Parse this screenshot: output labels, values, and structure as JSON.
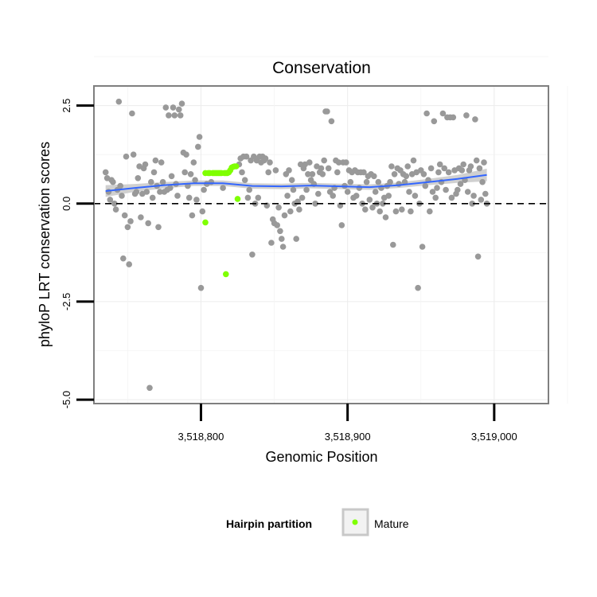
{
  "chart_data": {
    "type": "scatter",
    "title": "Conservation",
    "xlabel": "Genomic Position",
    "ylabel": "phyloP LRT conservation scores",
    "xlim": [
      3518727,
      3519037
    ],
    "ylim": [
      -5.1,
      3.0
    ],
    "x_ticks": [
      3518800,
      3518900,
      3519000
    ],
    "x_tick_labels": [
      "3,518,800",
      "3,518,900",
      "3,519,000"
    ],
    "y_ticks": [
      2.5,
      0.0,
      -2.5,
      -5.0
    ],
    "y_tick_labels": [
      "2.5",
      "0.0",
      "-2.5",
      "-5.0"
    ],
    "reference_line": {
      "y": 0,
      "style": "dashed"
    },
    "grid": true,
    "legend": {
      "title": "Hairpin partition",
      "position": "bottom",
      "entries": [
        {
          "label": "Mature",
          "color": "#7fff00"
        }
      ]
    },
    "colors": {
      "other": "#999999",
      "mature": "#7fff00",
      "smooth": "#3366ff",
      "band": "#c8c8c8"
    },
    "series": [
      {
        "name": "Mature",
        "points": [
          [
            3518803,
            0.78
          ],
          [
            3518805,
            0.78
          ],
          [
            3518806,
            0.78
          ],
          [
            3518808,
            0.78
          ],
          [
            3518809,
            0.78
          ],
          [
            3518810,
            0.78
          ],
          [
            3518811,
            0.78
          ],
          [
            3518812,
            0.78
          ],
          [
            3518813,
            0.78
          ],
          [
            3518814,
            0.78
          ],
          [
            3518816,
            0.78
          ],
          [
            3518817,
            0.78
          ],
          [
            3518818,
            0.78
          ],
          [
            3518819,
            0.8
          ],
          [
            3518820,
            0.85
          ],
          [
            3518821,
            0.92
          ],
          [
            3518822,
            0.94
          ],
          [
            3518823,
            0.95
          ],
          [
            3518824,
            0.95
          ],
          [
            3518825,
            0.12
          ],
          [
            3518803,
            -0.48
          ],
          [
            3518817,
            -1.8
          ]
        ]
      },
      {
        "points": [
          [
            3518735,
            0.8
          ],
          [
            3518736,
            0.65
          ],
          [
            3518737,
            0.3
          ],
          [
            3518738,
            0.1
          ],
          [
            3518739,
            0.6
          ],
          [
            3518740,
            0.55
          ],
          [
            3518741,
            0.0
          ],
          [
            3518742,
            -0.15
          ],
          [
            3518743,
            0.35
          ],
          [
            3518744,
            2.6
          ],
          [
            3518745,
            0.45
          ],
          [
            3518746,
            0.2
          ],
          [
            3518747,
            -1.4
          ],
          [
            3518748,
            -0.3
          ],
          [
            3518749,
            1.2
          ],
          [
            3518750,
            -0.6
          ],
          [
            3518751,
            -1.55
          ],
          [
            3518752,
            -0.45
          ],
          [
            3518753,
            2.3
          ],
          [
            3518754,
            1.25
          ],
          [
            3518755,
            0.25
          ],
          [
            3518756,
            0.3
          ],
          [
            3518757,
            0.65
          ],
          [
            3518758,
            0.95
          ],
          [
            3518759,
            -0.35
          ],
          [
            3518760,
            0.25
          ],
          [
            3518761,
            0.9
          ],
          [
            3518762,
            1.0
          ],
          [
            3518763,
            0.3
          ],
          [
            3518764,
            -0.5
          ],
          [
            3518765,
            -4.7
          ],
          [
            3518766,
            0.55
          ],
          [
            3518767,
            0.15
          ],
          [
            3518768,
            0.8
          ],
          [
            3518769,
            1.1
          ],
          [
            3518770,
            0.45
          ],
          [
            3518771,
            -0.6
          ],
          [
            3518772,
            0.3
          ],
          [
            3518773,
            1.05
          ],
          [
            3518774,
            0.55
          ],
          [
            3518775,
            0.3
          ],
          [
            3518776,
            2.45
          ],
          [
            3518777,
            0.35
          ],
          [
            3518778,
            2.25
          ],
          [
            3518779,
            0.4
          ],
          [
            3518780,
            0.7
          ],
          [
            3518781,
            2.45
          ],
          [
            3518782,
            2.25
          ],
          [
            3518783,
            0.5
          ],
          [
            3518784,
            0.2
          ],
          [
            3518785,
            2.4
          ],
          [
            3518786,
            2.25
          ],
          [
            3518787,
            2.55
          ],
          [
            3518788,
            1.3
          ],
          [
            3518789,
            0.8
          ],
          [
            3518790,
            1.25
          ],
          [
            3518791,
            0.45
          ],
          [
            3518792,
            0.15
          ],
          [
            3518793,
            0.75
          ],
          [
            3518794,
            -0.3
          ],
          [
            3518795,
            1.05
          ],
          [
            3518796,
            0.6
          ],
          [
            3518797,
            0.1
          ],
          [
            3518798,
            1.45
          ],
          [
            3518799,
            1.7
          ],
          [
            3518800,
            -2.15
          ],
          [
            3518801,
            -0.2
          ],
          [
            3518802,
            0.35
          ],
          [
            3518804,
            0.5
          ],
          [
            3518807,
            0.55
          ],
          [
            3518815,
            0.4
          ],
          [
            3518826,
            1.0
          ],
          [
            3518827,
            1.15
          ],
          [
            3518828,
            0.8
          ],
          [
            3518829,
            1.2
          ],
          [
            3518830,
            0.6
          ],
          [
            3518831,
            1.2
          ],
          [
            3518832,
            0.15
          ],
          [
            3518833,
            0.35
          ],
          [
            3518834,
            1.1
          ],
          [
            3518835,
            -1.3
          ],
          [
            3518836,
            1.2
          ],
          [
            3518837,
            0.0
          ],
          [
            3518838,
            1.1
          ],
          [
            3518839,
            0.15
          ],
          [
            3518840,
            1.2
          ],
          [
            3518841,
            1.05
          ],
          [
            3518842,
            1.2
          ],
          [
            3518843,
            1.1
          ],
          [
            3518844,
            1.15
          ],
          [
            3518845,
            -0.05
          ],
          [
            3518846,
            0.8
          ],
          [
            3518847,
            1.05
          ],
          [
            3518848,
            -1.0
          ],
          [
            3518849,
            -0.4
          ],
          [
            3518850,
            -0.5
          ],
          [
            3518851,
            0.85
          ],
          [
            3518852,
            -0.55
          ],
          [
            3518853,
            -0.1
          ],
          [
            3518854,
            -0.7
          ],
          [
            3518855,
            -0.9
          ],
          [
            3518856,
            -1.1
          ],
          [
            3518857,
            -0.3
          ],
          [
            3518858,
            0.75
          ],
          [
            3518859,
            0.2
          ],
          [
            3518860,
            0.85
          ],
          [
            3518861,
            -0.2
          ],
          [
            3518862,
            0.6
          ],
          [
            3518863,
            0.35
          ],
          [
            3518864,
            0.0
          ],
          [
            3518865,
            -0.9
          ],
          [
            3518866,
            0.05
          ],
          [
            3518867,
            -0.15
          ],
          [
            3518868,
            1.0
          ],
          [
            3518869,
            0.15
          ],
          [
            3518870,
            0.9
          ],
          [
            3518871,
            1.0
          ],
          [
            3518872,
            0.35
          ],
          [
            3518873,
            0.75
          ],
          [
            3518874,
            1.05
          ],
          [
            3518875,
            0.6
          ],
          [
            3518876,
            0.75
          ],
          [
            3518877,
            0.5
          ],
          [
            3518878,
            0.0
          ],
          [
            3518879,
            0.95
          ],
          [
            3518880,
            0.25
          ],
          [
            3518881,
            0.8
          ],
          [
            3518882,
            0.9
          ],
          [
            3518883,
            0.75
          ],
          [
            3518884,
            1.1
          ],
          [
            3518885,
            2.35
          ],
          [
            3518886,
            2.35
          ],
          [
            3518887,
            0.9
          ],
          [
            3518888,
            0.3
          ],
          [
            3518889,
            2.1
          ],
          [
            3518890,
            0.2
          ],
          [
            3518891,
            0.4
          ],
          [
            3518892,
            1.1
          ],
          [
            3518893,
            0.8
          ],
          [
            3518894,
            1.05
          ],
          [
            3518895,
            -0.05
          ],
          [
            3518896,
            -0.55
          ],
          [
            3518897,
            1.05
          ],
          [
            3518898,
            0.45
          ],
          [
            3518899,
            1.05
          ],
          [
            3518900,
            0.3
          ],
          [
            3518901,
            0.85
          ],
          [
            3518902,
            0.55
          ],
          [
            3518903,
            0.8
          ],
          [
            3518904,
            0.15
          ],
          [
            3518905,
            0.85
          ],
          [
            3518906,
            0.2
          ],
          [
            3518907,
            0.8
          ],
          [
            3518908,
            0.4
          ],
          [
            3518909,
            0.8
          ],
          [
            3518910,
            0.0
          ],
          [
            3518911,
            0.8
          ],
          [
            3518912,
            -0.15
          ],
          [
            3518913,
            0.55
          ],
          [
            3518914,
            0.7
          ],
          [
            3518915,
            0.1
          ],
          [
            3518916,
            0.75
          ],
          [
            3518917,
            -0.1
          ],
          [
            3518918,
            0.7
          ],
          [
            3518919,
            0.3
          ],
          [
            3518920,
            0.0
          ],
          [
            3518921,
            0.55
          ],
          [
            3518922,
            -0.2
          ],
          [
            3518923,
            0.4
          ],
          [
            3518924,
            0.0
          ],
          [
            3518925,
            0.15
          ],
          [
            3518926,
            -0.35
          ],
          [
            3518927,
            0.45
          ],
          [
            3518928,
            0.2
          ],
          [
            3518929,
            0.55
          ],
          [
            3518930,
            0.95
          ],
          [
            3518931,
            -1.05
          ],
          [
            3518932,
            0.75
          ],
          [
            3518933,
            -0.2
          ],
          [
            3518934,
            0.9
          ],
          [
            3518935,
            0.5
          ],
          [
            3518936,
            0.85
          ],
          [
            3518937,
            -0.15
          ],
          [
            3518938,
            0.75
          ],
          [
            3518939,
            0.55
          ],
          [
            3518940,
            0.7
          ],
          [
            3518941,
            0.95
          ],
          [
            3518942,
            0.3
          ],
          [
            3518943,
            -0.2
          ],
          [
            3518944,
            0.75
          ],
          [
            3518945,
            1.1
          ],
          [
            3518946,
            0.2
          ],
          [
            3518947,
            0.8
          ],
          [
            3518948,
            -2.15
          ],
          [
            3518949,
            0.0
          ],
          [
            3518950,
            0.85
          ],
          [
            3518951,
            -1.1
          ],
          [
            3518952,
            0.75
          ],
          [
            3518953,
            0.45
          ],
          [
            3518954,
            2.3
          ],
          [
            3518955,
            0.6
          ],
          [
            3518956,
            -0.2
          ],
          [
            3518957,
            0.9
          ],
          [
            3518958,
            0.3
          ],
          [
            3518959,
            2.1
          ],
          [
            3518960,
            0.15
          ],
          [
            3518961,
            0.4
          ],
          [
            3518962,
            0.8
          ],
          [
            3518963,
            1.0
          ],
          [
            3518964,
            0.55
          ],
          [
            3518965,
            2.3
          ],
          [
            3518966,
            0.9
          ],
          [
            3518967,
            0.35
          ],
          [
            3518968,
            2.2
          ],
          [
            3518969,
            0.8
          ],
          [
            3518970,
            2.2
          ],
          [
            3518971,
            0.15
          ],
          [
            3518972,
            2.2
          ],
          [
            3518973,
            0.85
          ],
          [
            3518974,
            0.25
          ],
          [
            3518975,
            0.35
          ],
          [
            3518976,
            0.9
          ],
          [
            3518977,
            0.5
          ],
          [
            3518978,
            0.85
          ],
          [
            3518979,
            1.0
          ],
          [
            3518980,
            0.6
          ],
          [
            3518981,
            2.25
          ],
          [
            3518982,
            0.3
          ],
          [
            3518983,
            0.85
          ],
          [
            3518984,
            0.95
          ],
          [
            3518985,
            0.0
          ],
          [
            3518986,
            0.2
          ],
          [
            3518987,
            2.15
          ],
          [
            3518988,
            1.1
          ],
          [
            3518989,
            -1.35
          ],
          [
            3518990,
            0.9
          ],
          [
            3518991,
            0.1
          ],
          [
            3518992,
            0.55
          ],
          [
            3518993,
            1.05
          ],
          [
            3518994,
            0.25
          ],
          [
            3518995,
            0.0
          ]
        ]
      }
    ],
    "smooth_line": {
      "x": [
        3518735,
        3518755,
        3518775,
        3518795,
        3518815,
        3518835,
        3518855,
        3518875,
        3518895,
        3518915,
        3518935,
        3518955,
        3518975,
        3518995
      ],
      "y": [
        0.32,
        0.4,
        0.47,
        0.52,
        0.52,
        0.45,
        0.44,
        0.46,
        0.44,
        0.42,
        0.47,
        0.55,
        0.63,
        0.73
      ],
      "band_halfwidth": [
        0.15,
        0.1,
        0.08,
        0.07,
        0.07,
        0.07,
        0.07,
        0.07,
        0.07,
        0.07,
        0.07,
        0.08,
        0.1,
        0.16
      ]
    }
  }
}
